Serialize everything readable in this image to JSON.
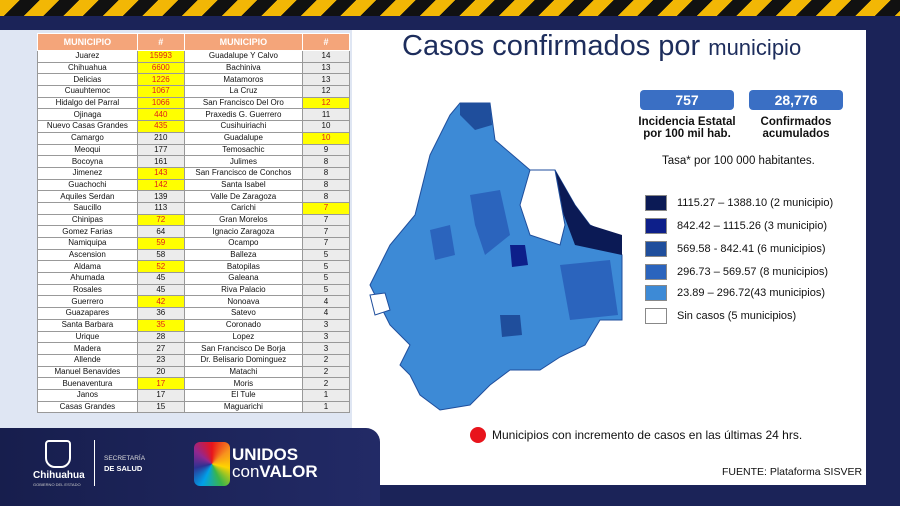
{
  "title": "Casos confirmados por",
  "title_small": "municipio",
  "table": {
    "headers": [
      "MUNICIPIO",
      "#",
      "MUNICIPIO",
      "#"
    ],
    "rows": [
      [
        "Juarez",
        "15993",
        true,
        "Guadalupe Y Calvo",
        "14",
        false
      ],
      [
        "Chihuahua",
        "6600",
        true,
        "Bachiniva",
        "13",
        false
      ],
      [
        "Delicias",
        "1226",
        true,
        "Matamoros",
        "13",
        false
      ],
      [
        "Cuauhtemoc",
        "1067",
        true,
        "La Cruz",
        "12",
        false
      ],
      [
        "Hidalgo del Parral",
        "1066",
        true,
        "San Francisco Del Oro",
        "12",
        true
      ],
      [
        "Ojinaga",
        "440",
        true,
        "Praxedis G. Guerrero",
        "11",
        false
      ],
      [
        "Nuevo Casas Grandes",
        "435",
        true,
        "Cusihuiriachi",
        "10",
        false
      ],
      [
        "Camargo",
        "210",
        false,
        "Guadalupe",
        "10",
        true
      ],
      [
        "Meoqui",
        "177",
        false,
        "Temosachic",
        "9",
        false
      ],
      [
        "Bocoyna",
        "161",
        false,
        "Julimes",
        "8",
        false
      ],
      [
        "Jimenez",
        "143",
        true,
        "San Francisco de Conchos",
        "8",
        false
      ],
      [
        "Guachochi",
        "142",
        true,
        "Santa Isabel",
        "8",
        false
      ],
      [
        "Aquiles Serdan",
        "139",
        false,
        "Valle De Zaragoza",
        "8",
        false
      ],
      [
        "Saucillo",
        "113",
        false,
        "Carichi",
        "7",
        true
      ],
      [
        "Chinipas",
        "72",
        true,
        "Gran Morelos",
        "7",
        false
      ],
      [
        "Gomez Farias",
        "64",
        false,
        "Ignacio Zaragoza",
        "7",
        false
      ],
      [
        "Namiquipa",
        "59",
        true,
        "Ocampo",
        "7",
        false
      ],
      [
        "Ascension",
        "58",
        false,
        "Balleza",
        "5",
        false
      ],
      [
        "Aldama",
        "52",
        true,
        "Batopilas",
        "5",
        false
      ],
      [
        "Ahumada",
        "45",
        false,
        "Galeana",
        "5",
        false
      ],
      [
        "Rosales",
        "45",
        false,
        "Riva Palacio",
        "5",
        false
      ],
      [
        "Guerrero",
        "42",
        true,
        "Nonoava",
        "4",
        false
      ],
      [
        "Guazapares",
        "36",
        false,
        "Satevo",
        "4",
        false
      ],
      [
        "Santa Barbara",
        "35",
        true,
        "Coronado",
        "3",
        false
      ],
      [
        "Urique",
        "28",
        false,
        "Lopez",
        "3",
        false
      ],
      [
        "Madera",
        "27",
        false,
        "San Francisco De Borja",
        "3",
        false
      ],
      [
        "Allende",
        "23",
        false,
        "Dr. Belisario Dominguez",
        "2",
        false
      ],
      [
        "Manuel Benavides",
        "20",
        false,
        "Matachi",
        "2",
        false
      ],
      [
        "Buenaventura",
        "17",
        true,
        "Moris",
        "2",
        false
      ],
      [
        "Janos",
        "17",
        false,
        "El Tule",
        "1",
        false
      ],
      [
        "Casas Grandes",
        "15",
        false,
        "Maguarichi",
        "1",
        false
      ]
    ]
  },
  "stats": {
    "incidence": "757",
    "incidence_label": "Incidencia Estatal por 100 mil hab.",
    "confirmed": "28,776",
    "confirmed_label": "Confirmados acumulados",
    "rate_note": "Tasa* por 100 000 habitantes."
  },
  "legend": [
    {
      "label": "1115.27 – 1388.10 (2 municipio)",
      "color": "#0b1a55"
    },
    {
      "label": "842.42 – 1115.26 (3 municipio)",
      "color": "#0d1f8a"
    },
    {
      "label": "569.58  -  842.41 (6 municipios)",
      "color": "#1f4e9c"
    },
    {
      "label": "296.73 – 569.57 (8 municipios)",
      "color": "#2b64bd"
    },
    {
      "label": " 23.89 – 296.72(43  municipios)",
      "color": "#3d8ad6"
    },
    {
      "label": "Sin casos (5 municipios)",
      "color": "#ffffff"
    }
  ],
  "red_legend": "Municipios con incremento de casos en las últimas 24 hrs.",
  "source": "FUENTE: Plataforma SISVER",
  "footer": {
    "state": "Chihuahua",
    "state_sub": "GOBIERNO DEL ESTADO",
    "dept1": "SECRETARÍA",
    "dept2": "DE SALUD",
    "brand1": "UNIDOS",
    "brand2a": "con",
    "brand2b": "VALOR"
  }
}
